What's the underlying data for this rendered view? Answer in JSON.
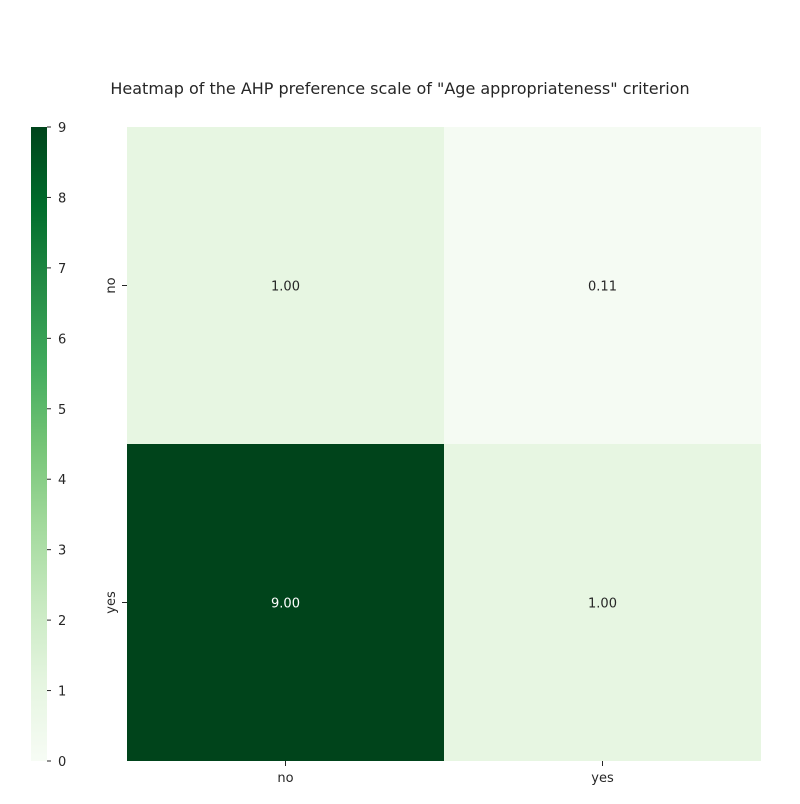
{
  "chart_data": {
    "type": "heatmap",
    "title": "Heatmap of the AHP preference scale of \"Age appropriateness\" criterion",
    "x_categories": [
      "no",
      "yes"
    ],
    "y_categories": [
      "no",
      "yes"
    ],
    "values": [
      [
        1.0,
        0.11
      ],
      [
        9.0,
        1.0
      ]
    ],
    "value_format": "0.00",
    "colormap": "Greens",
    "colorbar": {
      "placement": "left",
      "min": 0,
      "max": 9,
      "ticks": [
        0,
        1,
        2,
        3,
        4,
        5,
        6,
        7,
        8,
        9
      ],
      "stops": [
        "#f7fcf5",
        "#e5f5e0",
        "#c7e9c0",
        "#a1d99b",
        "#74c476",
        "#41ab5d",
        "#238b45",
        "#006d2c",
        "#00441b"
      ]
    },
    "annotation_colors": {
      "light": "#ffffff",
      "dark": "#262626"
    },
    "xlabel": "",
    "ylabel": ""
  }
}
